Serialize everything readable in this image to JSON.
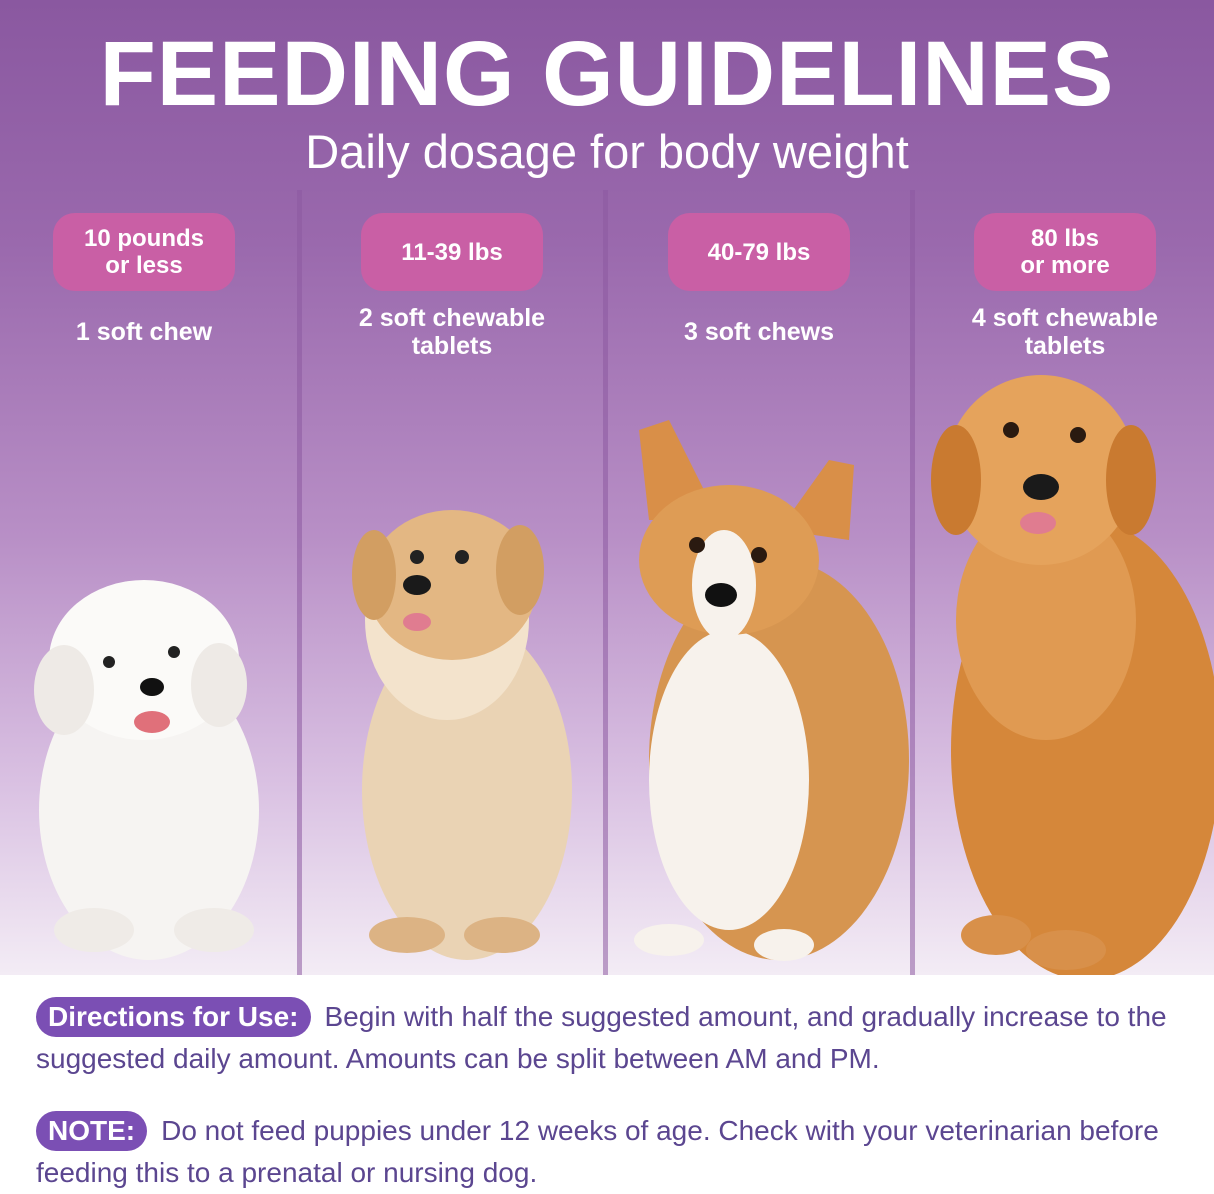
{
  "header": {
    "title": "FEEDING GUIDELINES",
    "subtitle": "Daily dosage for body weight"
  },
  "columns": [
    {
      "weight": "10 pounds\nor less",
      "dose": "1 soft chew",
      "dog": "bichon-frise-puppy"
    },
    {
      "weight": "11-39 lbs",
      "dose": "2 soft chewable\ntablets",
      "dog": "golden-retriever-puppy"
    },
    {
      "weight": "40-79 lbs",
      "dose": "3 soft chews",
      "dog": "corgi"
    },
    {
      "weight": "80 lbs\nor more",
      "dose": "4 soft chewable\ntablets",
      "dog": "golden-retriever"
    }
  ],
  "directions": {
    "label": "Directions for Use:",
    "text": "Begin with half the suggested amount, and gradually increase to the suggested daily amount. Amounts can be split between AM and PM."
  },
  "note": {
    "label": "NOTE:",
    "text": "Do not feed puppies under 12 weeks of age. Check with your veterinarian before feeding this to a prenatal or nursing dog."
  },
  "colors": {
    "header_purple": "#8a58a0",
    "weight_pill": "#c95fa5",
    "label_badge": "#7b4fb4",
    "body_text": "#5b4690"
  }
}
